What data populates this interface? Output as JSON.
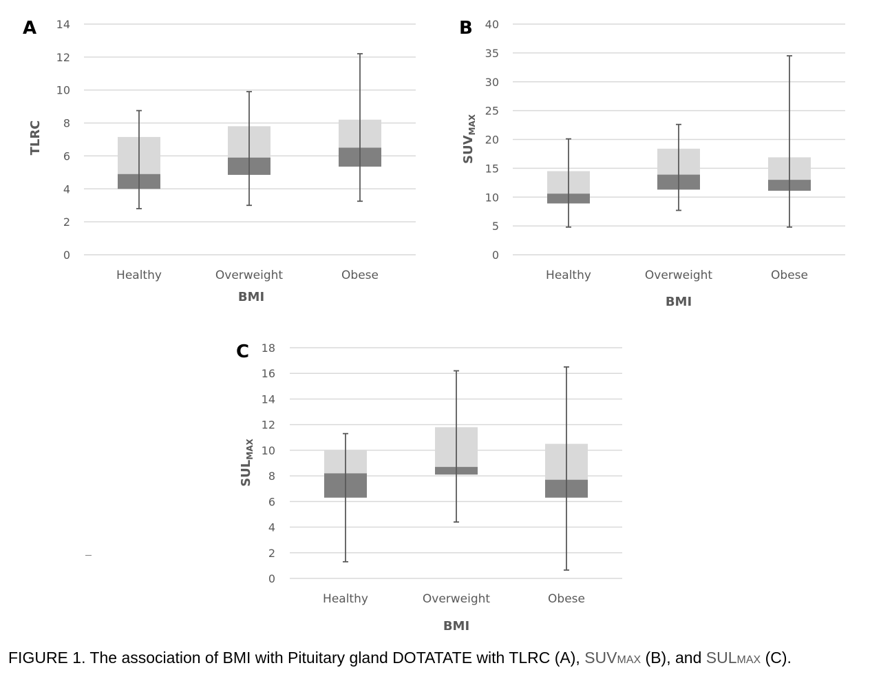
{
  "chart_data": [
    {
      "panel": "A",
      "type": "boxplot",
      "ylabel": "TLRC",
      "xlabel": "BMI",
      "ylim": [
        0,
        14
      ],
      "yticks": [
        0,
        2,
        4,
        6,
        8,
        10,
        12,
        14
      ],
      "grid": true,
      "legend": "none",
      "categories": [
        "Healthy",
        "Overweight",
        "Obese"
      ],
      "boxes": [
        {
          "min": 2.8,
          "q1": 4.0,
          "median": 4.9,
          "q3": 7.15,
          "max": 8.75
        },
        {
          "min": 3.0,
          "q1": 4.85,
          "median": 5.9,
          "q3": 7.8,
          "max": 9.9
        },
        {
          "min": 3.25,
          "q1": 5.35,
          "median": 6.5,
          "q3": 8.2,
          "max": 12.2
        }
      ]
    },
    {
      "panel": "B",
      "type": "boxplot",
      "ylabel": "SUV",
      "ylabel_sub": "MAX",
      "xlabel": "BMI",
      "ylim": [
        0,
        40
      ],
      "yticks": [
        0,
        5,
        10,
        15,
        20,
        25,
        30,
        35,
        40
      ],
      "grid": true,
      "legend": "none",
      "categories": [
        "Healthy",
        "Overweight",
        "Obese"
      ],
      "boxes": [
        {
          "min": 4.8,
          "q1": 8.9,
          "median": 10.6,
          "q3": 14.5,
          "max": 20.1
        },
        {
          "min": 7.7,
          "q1": 11.3,
          "median": 13.9,
          "q3": 18.4,
          "max": 22.6
        },
        {
          "min": 4.8,
          "q1": 11.1,
          "median": 13.0,
          "q3": 16.9,
          "max": 34.5
        }
      ]
    },
    {
      "panel": "C",
      "type": "boxplot",
      "ylabel": "SUL",
      "ylabel_sub": "MAX",
      "xlabel": "BMI",
      "ylim": [
        0,
        18
      ],
      "yticks": [
        0,
        2,
        4,
        6,
        8,
        10,
        12,
        14,
        16,
        18
      ],
      "grid": true,
      "legend": "none",
      "categories": [
        "Healthy",
        "Overweight",
        "Obese"
      ],
      "boxes": [
        {
          "min": 1.3,
          "q1": 6.3,
          "median": 8.2,
          "q3": 10.0,
          "max": 11.3
        },
        {
          "min": 4.4,
          "q1": 8.1,
          "median": 8.7,
          "q3": 11.8,
          "max": 16.2
        },
        {
          "min": 0.65,
          "q1": 6.3,
          "median": 7.7,
          "q3": 10.5,
          "max": 16.5
        }
      ]
    }
  ],
  "colors": {
    "box_upper": "#d9d9d9",
    "box_lower": "#808080",
    "whisker": "#595959",
    "grid": "#d9d9d9",
    "text": "#595959"
  },
  "caption": {
    "part1": "FIGURE 1. The association of BMI with Pituitary gland DOTATATE with TLRC (A), ",
    "suv": "SUV",
    "suv_sub": "MAX",
    "part2": " (B), and ",
    "sul": "SUL",
    "sul_sub": "MAX",
    "part3": " (C)."
  }
}
